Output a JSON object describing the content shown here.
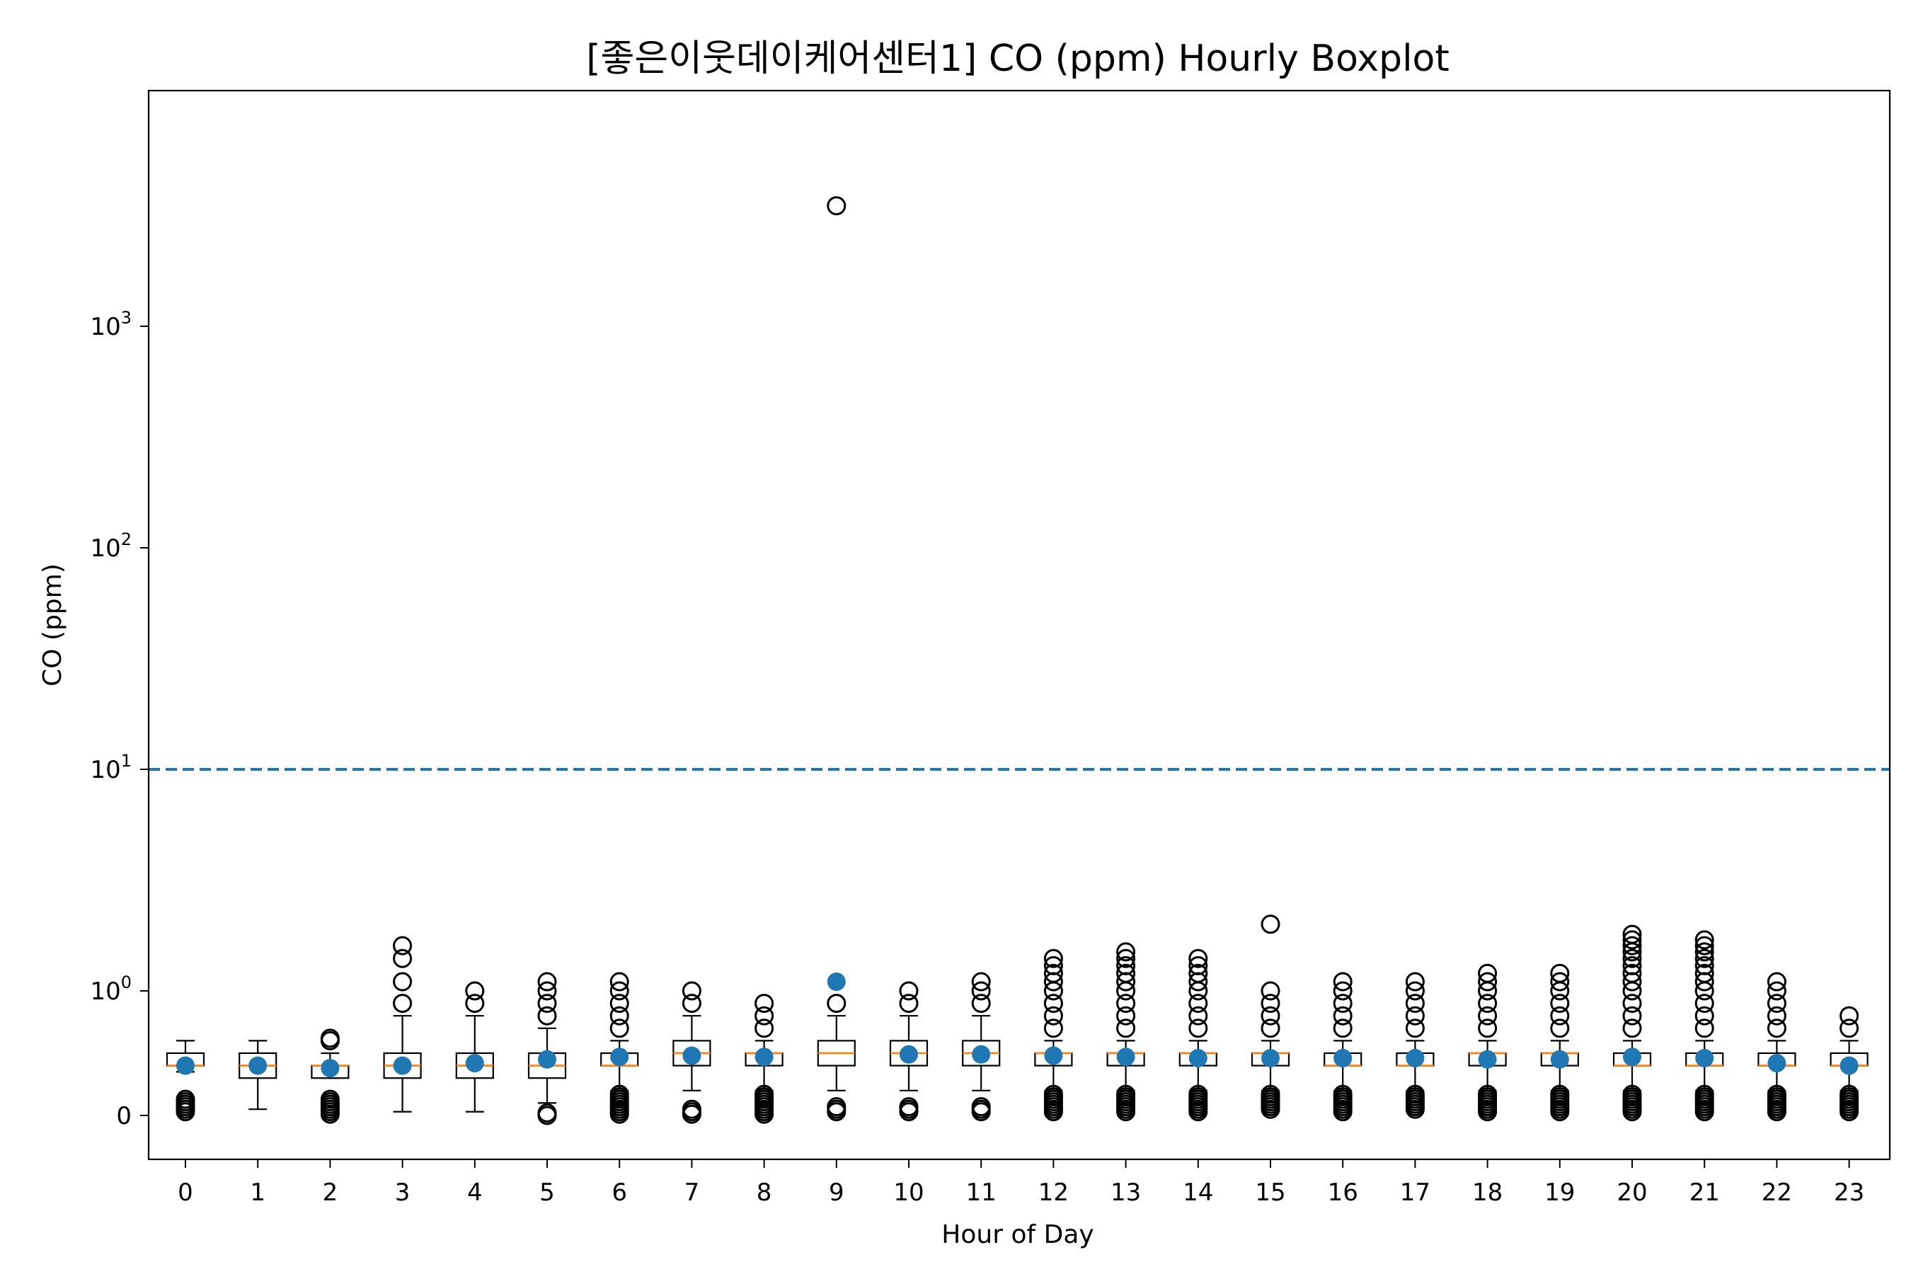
{
  "chart_data": {
    "type": "boxplot",
    "title": "[좋은이웃데이케어센터1] CO (ppm) Hourly Boxplot",
    "xlabel": "Hour of Day",
    "ylabel": "CO (ppm)",
    "yscale": "symlog",
    "ylim": [
      -0.3,
      6000
    ],
    "y_ticks": [
      {
        "value": 0,
        "base": "0",
        "exp": ""
      },
      {
        "value": 1,
        "base": "10",
        "exp": "0"
      },
      {
        "value": 10,
        "base": "10",
        "exp": "1"
      },
      {
        "value": 100,
        "base": "10",
        "exp": "2"
      },
      {
        "value": 1000,
        "base": "10",
        "exp": "3"
      }
    ],
    "threshold_line": {
      "value": 10,
      "style": "dashed",
      "color": "#1f77b4"
    },
    "colors": {
      "box": "#000000",
      "median": "#ff7f0e",
      "mean": "#1f77b4",
      "threshold": "#1f77b4"
    },
    "categories": [
      "0",
      "1",
      "2",
      "3",
      "4",
      "5",
      "6",
      "7",
      "8",
      "9",
      "10",
      "11",
      "12",
      "13",
      "14",
      "15",
      "16",
      "17",
      "18",
      "19",
      "20",
      "21",
      "22",
      "23"
    ],
    "boxes": [
      {
        "hour": "0",
        "whislo": 0.35,
        "q1": 0.4,
        "med": 0.4,
        "q3": 0.5,
        "whishi": 0.6,
        "mean": 0.4,
        "fliers": [
          0.03,
          0.05,
          0.07,
          0.09,
          0.11,
          0.13
        ]
      },
      {
        "hour": "1",
        "whislo": 0.05,
        "q1": 0.3,
        "med": 0.4,
        "q3": 0.5,
        "whishi": 0.6,
        "mean": 0.4,
        "fliers": []
      },
      {
        "hour": "2",
        "whislo": 0.3,
        "q1": 0.3,
        "med": 0.4,
        "q3": 0.4,
        "whishi": 0.5,
        "mean": 0.38,
        "fliers": [
          0.01,
          0.03,
          0.05,
          0.07,
          0.09,
          0.11,
          0.13,
          0.6,
          0.62
        ]
      },
      {
        "hour": "3",
        "whislo": 0.03,
        "q1": 0.3,
        "med": 0.4,
        "q3": 0.5,
        "whishi": 0.8,
        "mean": 0.4,
        "fliers": [
          0.9,
          1.1,
          1.4,
          1.6
        ]
      },
      {
        "hour": "4",
        "whislo": 0.03,
        "q1": 0.3,
        "med": 0.4,
        "q3": 0.5,
        "whishi": 0.8,
        "mean": 0.42,
        "fliers": [
          0.9,
          1.0
        ]
      },
      {
        "hour": "5",
        "whislo": 0.1,
        "q1": 0.3,
        "med": 0.4,
        "q3": 0.5,
        "whishi": 0.7,
        "mean": 0.45,
        "fliers": [
          0.0,
          0.02,
          0.8,
          0.9,
          1.0,
          1.1
        ]
      },
      {
        "hour": "6",
        "whislo": 0.2,
        "q1": 0.4,
        "med": 0.4,
        "q3": 0.5,
        "whishi": 0.6,
        "mean": 0.47,
        "fliers": [
          0.01,
          0.03,
          0.05,
          0.07,
          0.09,
          0.11,
          0.13,
          0.15,
          0.17,
          0.7,
          0.8,
          0.9,
          1.0,
          1.1
        ]
      },
      {
        "hour": "7",
        "whislo": 0.2,
        "q1": 0.4,
        "med": 0.5,
        "q3": 0.6,
        "whishi": 0.8,
        "mean": 0.48,
        "fliers": [
          0.01,
          0.03,
          0.05,
          0.9,
          1.0
        ]
      },
      {
        "hour": "8",
        "whislo": 0.2,
        "q1": 0.4,
        "med": 0.5,
        "q3": 0.5,
        "whishi": 0.6,
        "mean": 0.47,
        "fliers": [
          0.01,
          0.03,
          0.05,
          0.07,
          0.09,
          0.11,
          0.13,
          0.15,
          0.17,
          0.7,
          0.8,
          0.9
        ]
      },
      {
        "hour": "9",
        "whislo": 0.2,
        "q1": 0.4,
        "med": 0.5,
        "q3": 0.6,
        "whishi": 0.8,
        "mean": 1.1,
        "fliers": [
          0.03,
          0.05,
          0.07,
          0.9,
          3500
        ]
      },
      {
        "hour": "10",
        "whislo": 0.2,
        "q1": 0.4,
        "med": 0.5,
        "q3": 0.6,
        "whishi": 0.8,
        "mean": 0.49,
        "fliers": [
          0.03,
          0.05,
          0.07,
          0.9,
          1.0
        ]
      },
      {
        "hour": "11",
        "whislo": 0.2,
        "q1": 0.4,
        "med": 0.5,
        "q3": 0.6,
        "whishi": 0.8,
        "mean": 0.49,
        "fliers": [
          0.03,
          0.05,
          0.07,
          0.9,
          1.0,
          1.1
        ]
      },
      {
        "hour": "12",
        "whislo": 0.2,
        "q1": 0.4,
        "med": 0.5,
        "q3": 0.5,
        "whishi": 0.6,
        "mean": 0.48,
        "fliers": [
          0.03,
          0.05,
          0.07,
          0.09,
          0.11,
          0.13,
          0.15,
          0.17,
          0.7,
          0.8,
          0.9,
          1.0,
          1.1,
          1.2,
          1.3,
          1.4
        ]
      },
      {
        "hour": "13",
        "whislo": 0.2,
        "q1": 0.4,
        "med": 0.5,
        "q3": 0.5,
        "whishi": 0.6,
        "mean": 0.47,
        "fliers": [
          0.03,
          0.05,
          0.07,
          0.09,
          0.11,
          0.13,
          0.15,
          0.17,
          0.7,
          0.8,
          0.9,
          1.0,
          1.1,
          1.2,
          1.3,
          1.4,
          1.5
        ]
      },
      {
        "hour": "14",
        "whislo": 0.2,
        "q1": 0.4,
        "med": 0.5,
        "q3": 0.5,
        "whishi": 0.6,
        "mean": 0.46,
        "fliers": [
          0.03,
          0.05,
          0.07,
          0.09,
          0.11,
          0.13,
          0.15,
          0.17,
          0.7,
          0.8,
          0.9,
          1.0,
          1.1,
          1.2,
          1.3,
          1.4
        ]
      },
      {
        "hour": "15",
        "whislo": 0.2,
        "q1": 0.4,
        "med": 0.5,
        "q3": 0.5,
        "whishi": 0.6,
        "mean": 0.46,
        "fliers": [
          0.05,
          0.07,
          0.09,
          0.11,
          0.13,
          0.15,
          0.17,
          0.7,
          0.8,
          0.9,
          1.0,
          2.0
        ]
      },
      {
        "hour": "16",
        "whislo": 0.2,
        "q1": 0.4,
        "med": 0.4,
        "q3": 0.5,
        "whishi": 0.6,
        "mean": 0.46,
        "fliers": [
          0.03,
          0.05,
          0.07,
          0.09,
          0.11,
          0.13,
          0.15,
          0.17,
          0.7,
          0.8,
          0.9,
          1.0,
          1.1
        ]
      },
      {
        "hour": "17",
        "whislo": 0.2,
        "q1": 0.4,
        "med": 0.4,
        "q3": 0.5,
        "whishi": 0.6,
        "mean": 0.46,
        "fliers": [
          0.05,
          0.07,
          0.09,
          0.11,
          0.13,
          0.15,
          0.17,
          0.7,
          0.8,
          0.9,
          1.0,
          1.1
        ]
      },
      {
        "hour": "18",
        "whislo": 0.2,
        "q1": 0.4,
        "med": 0.5,
        "q3": 0.5,
        "whishi": 0.6,
        "mean": 0.45,
        "fliers": [
          0.03,
          0.05,
          0.07,
          0.09,
          0.11,
          0.13,
          0.15,
          0.17,
          0.7,
          0.8,
          0.9,
          1.0,
          1.1,
          1.2
        ]
      },
      {
        "hour": "19",
        "whislo": 0.2,
        "q1": 0.4,
        "med": 0.5,
        "q3": 0.5,
        "whishi": 0.6,
        "mean": 0.45,
        "fliers": [
          0.03,
          0.05,
          0.07,
          0.09,
          0.11,
          0.13,
          0.15,
          0.17,
          0.7,
          0.8,
          0.9,
          1.0,
          1.1,
          1.2
        ]
      },
      {
        "hour": "20",
        "whislo": 0.2,
        "q1": 0.4,
        "med": 0.4,
        "q3": 0.5,
        "whishi": 0.6,
        "mean": 0.47,
        "fliers": [
          0.03,
          0.05,
          0.07,
          0.09,
          0.11,
          0.13,
          0.15,
          0.17,
          0.7,
          0.8,
          0.9,
          1.0,
          1.1,
          1.2,
          1.3,
          1.4,
          1.5,
          1.6,
          1.7,
          1.8
        ]
      },
      {
        "hour": "21",
        "whislo": 0.2,
        "q1": 0.4,
        "med": 0.4,
        "q3": 0.5,
        "whishi": 0.6,
        "mean": 0.46,
        "fliers": [
          0.03,
          0.05,
          0.07,
          0.09,
          0.11,
          0.13,
          0.15,
          0.17,
          0.7,
          0.8,
          0.9,
          1.0,
          1.1,
          1.2,
          1.3,
          1.4,
          1.5,
          1.6,
          1.7
        ]
      },
      {
        "hour": "22",
        "whislo": 0.2,
        "q1": 0.4,
        "med": 0.4,
        "q3": 0.5,
        "whishi": 0.6,
        "mean": 0.42,
        "fliers": [
          0.03,
          0.05,
          0.07,
          0.09,
          0.11,
          0.13,
          0.15,
          0.17,
          0.7,
          0.8,
          0.9,
          1.0,
          1.1
        ]
      },
      {
        "hour": "23",
        "whislo": 0.2,
        "q1": 0.4,
        "med": 0.4,
        "q3": 0.5,
        "whishi": 0.6,
        "mean": 0.4,
        "fliers": [
          0.03,
          0.05,
          0.07,
          0.09,
          0.11,
          0.13,
          0.15,
          0.17,
          0.7,
          0.8
        ]
      }
    ]
  }
}
